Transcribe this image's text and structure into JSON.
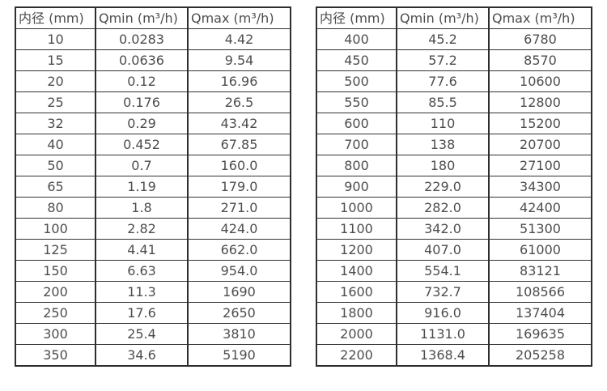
{
  "tables": [
    {
      "headers": [
        "内径 (mm)",
        "Qmin (m³/h)",
        "Qmax (m³/h)"
      ],
      "rows": [
        [
          "10",
          "0.0283",
          "4.42"
        ],
        [
          "15",
          "0.0636",
          "9.54"
        ],
        [
          "20",
          "0.12",
          "16.96"
        ],
        [
          "25",
          "0.176",
          "26.5"
        ],
        [
          "32",
          "0.29",
          "43.42"
        ],
        [
          "40",
          "0.452",
          "67.85"
        ],
        [
          "50",
          "0.7",
          "160.0"
        ],
        [
          "65",
          "1.19",
          "179.0"
        ],
        [
          "80",
          "1.8",
          "271.0"
        ],
        [
          "100",
          "2.82",
          "424.0"
        ],
        [
          "125",
          "4.41",
          "662.0"
        ],
        [
          "150",
          "6.63",
          "954.0"
        ],
        [
          "200",
          "11.3",
          "1690"
        ],
        [
          "250",
          "17.6",
          "2650"
        ],
        [
          "300",
          "25.4",
          "3810"
        ],
        [
          "350",
          "34.6",
          "5190"
        ]
      ]
    },
    {
      "headers": [
        "内径 (mm)",
        "Qmin (m³/h)",
        "Qmax (m³/h)"
      ],
      "rows": [
        [
          "400",
          "45.2",
          "6780"
        ],
        [
          "450",
          "57.2",
          "8570"
        ],
        [
          "500",
          "77.6",
          "10600"
        ],
        [
          "550",
          "85.5",
          "12800"
        ],
        [
          "600",
          "110",
          "15200"
        ],
        [
          "700",
          "138",
          "20700"
        ],
        [
          "800",
          "180",
          "27100"
        ],
        [
          "900",
          "229.0",
          "34300"
        ],
        [
          "1000",
          "282.0",
          "42400"
        ],
        [
          "1100",
          "342.0",
          "51300"
        ],
        [
          "1200",
          "407.0",
          "61000"
        ],
        [
          "1400",
          "554.1",
          "83121"
        ],
        [
          "1600",
          "732.7",
          "108566"
        ],
        [
          "1800",
          "916.0",
          "137404"
        ],
        [
          "2000",
          "1131.0",
          "169635"
        ],
        [
          "2200",
          "1368.4",
          "205258"
        ]
      ]
    }
  ],
  "colors": {
    "text": "#4d4d4d",
    "border": "#2e2e2e",
    "background": "#ffffff"
  }
}
